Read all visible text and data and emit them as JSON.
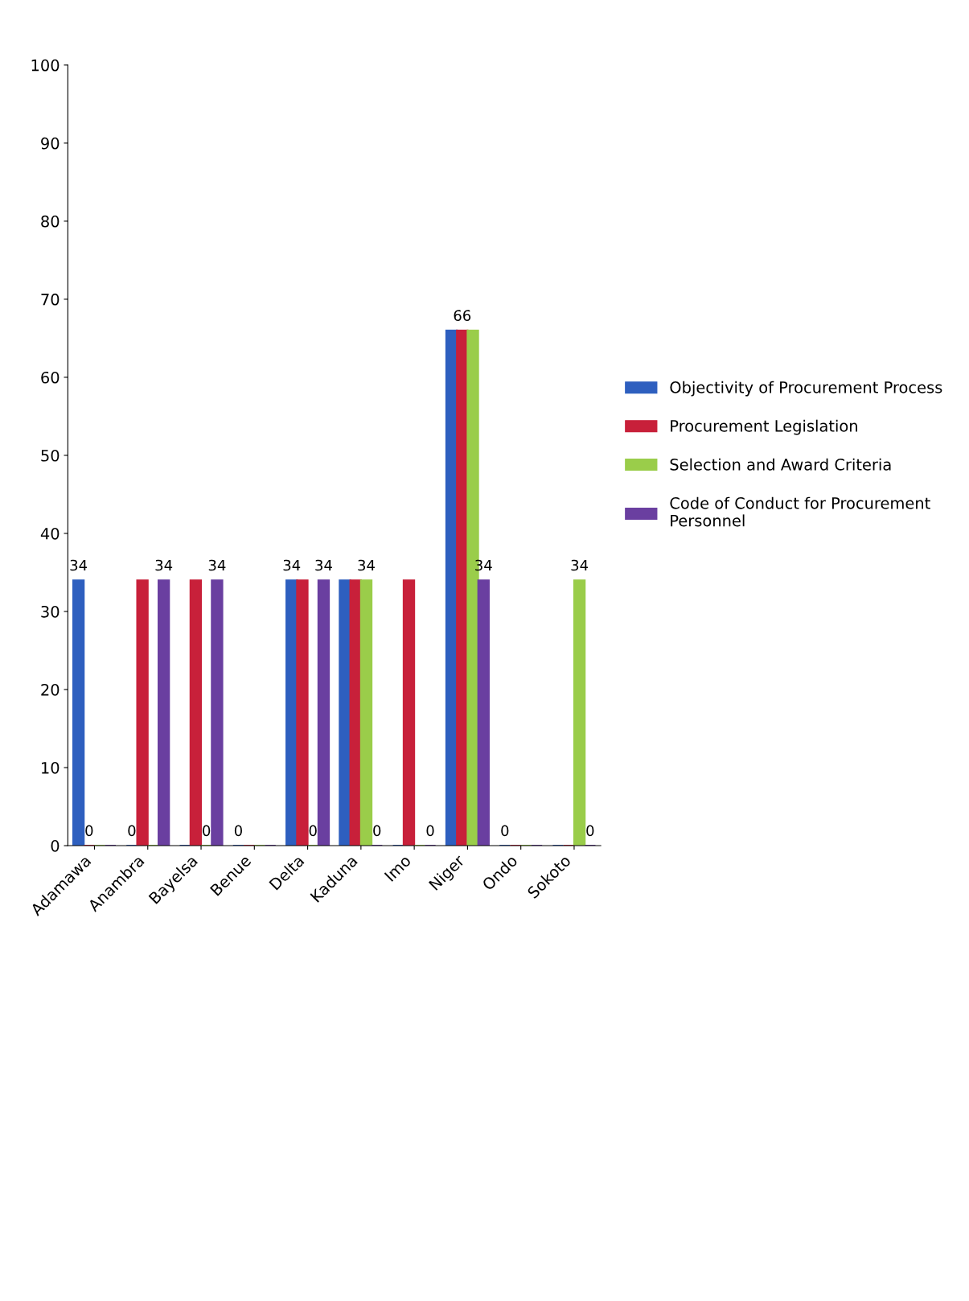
{
  "chart_data": {
    "type": "bar",
    "categories": [
      "Adamawa",
      "Anambra",
      "Bayelsa",
      "Benue",
      "Delta",
      "Kaduna",
      "Imo",
      "Niger",
      "Ondo",
      "Sokoto"
    ],
    "series": [
      {
        "name": "Objectivity of Procurement Process",
        "color": "#2e5fbf",
        "values": [
          34,
          0,
          0,
          0,
          34,
          34,
          0,
          66,
          0,
          0
        ],
        "value_labels": [
          "34",
          "0",
          null,
          "0",
          "34",
          null,
          null,
          null,
          "0",
          null
        ]
      },
      {
        "name": "Procurement Legislation",
        "color": "#c8203a",
        "values": [
          0,
          34,
          34,
          0,
          34,
          34,
          34,
          66,
          0,
          0
        ],
        "value_labels": [
          "0",
          null,
          null,
          null,
          null,
          null,
          null,
          "66",
          null,
          null
        ]
      },
      {
        "name": "Selection and Award Criteria",
        "color": "#9acd4a",
        "values": [
          0,
          0,
          0,
          0,
          0,
          34,
          0,
          66,
          0,
          34
        ],
        "value_labels": [
          null,
          null,
          "0",
          null,
          "0",
          "34",
          null,
          null,
          null,
          "34"
        ]
      },
      {
        "name": "Code of Conduct for Procurement Personnel",
        "color": "#6a3fa0",
        "values": [
          0,
          34,
          34,
          0,
          34,
          0,
          0,
          34,
          0,
          0
        ],
        "value_labels": [
          null,
          "34",
          "34",
          null,
          "34",
          "0",
          "0",
          "34",
          null,
          "0"
        ]
      }
    ],
    "ylim": [
      0,
      100
    ],
    "yticks": [
      0,
      10,
      20,
      30,
      40,
      50,
      60,
      70,
      80,
      90,
      100
    ],
    "grid": false,
    "legend": "right"
  }
}
